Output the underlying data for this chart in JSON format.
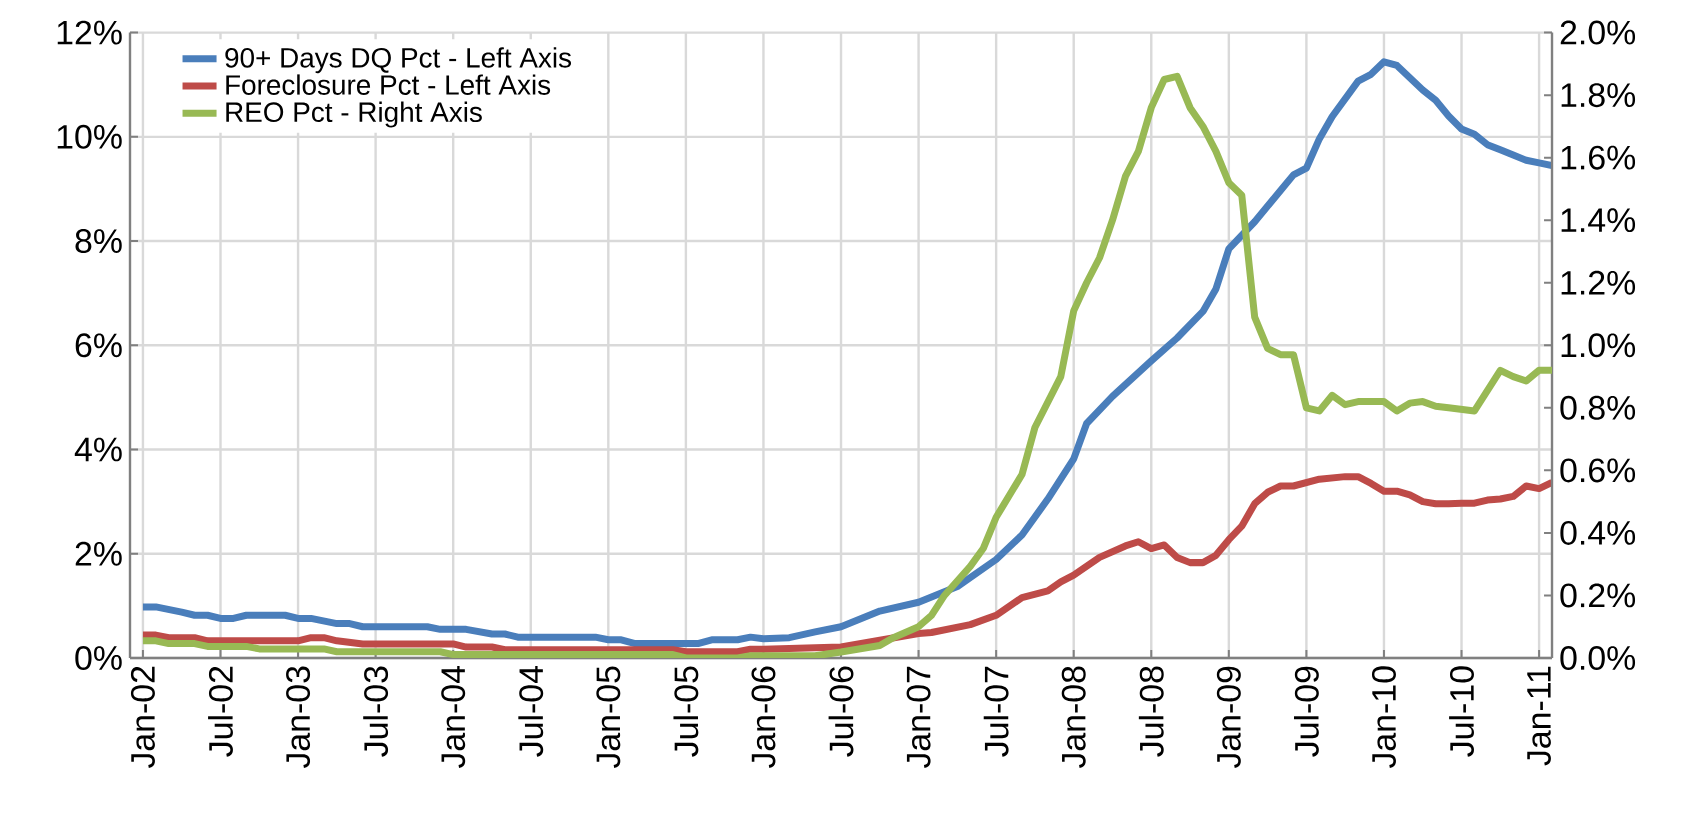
{
  "chart_data": {
    "type": "line",
    "grid": true,
    "legend": "top left",
    "line_style": "solid",
    "marker": "none",
    "xlim": [
      "2001-12",
      "2011-02"
    ],
    "xticks": [
      {
        "value": "2002-01",
        "label": "Jan-02"
      },
      {
        "value": "2002-07",
        "label": "Jul-02"
      },
      {
        "value": "2003-01",
        "label": "Jan-03"
      },
      {
        "value": "2003-07",
        "label": "Jul-03"
      },
      {
        "value": "2004-01",
        "label": "Jan-04"
      },
      {
        "value": "2004-07",
        "label": "Jul-04"
      },
      {
        "value": "2005-01",
        "label": "Jan-05"
      },
      {
        "value": "2005-07",
        "label": "Jul-05"
      },
      {
        "value": "2006-01",
        "label": "Jan-06"
      },
      {
        "value": "2006-07",
        "label": "Jul-06"
      },
      {
        "value": "2007-01",
        "label": "Jan-07"
      },
      {
        "value": "2007-07",
        "label": "Jul-07"
      },
      {
        "value": "2008-01",
        "label": "Jan-08"
      },
      {
        "value": "2008-07",
        "label": "Jul-08"
      },
      {
        "value": "2009-01",
        "label": "Jan-09"
      },
      {
        "value": "2009-07",
        "label": "Jul-09"
      },
      {
        "value": "2010-01",
        "label": "Jan-10"
      },
      {
        "value": "2010-07",
        "label": "Jul-10"
      },
      {
        "value": "2011-01",
        "label": "Jan-11"
      }
    ],
    "ylim": [
      0,
      12
    ],
    "yticks": [
      {
        "value": 0,
        "label": "0%"
      },
      {
        "value": 2,
        "label": "2%"
      },
      {
        "value": 4,
        "label": "4%"
      },
      {
        "value": 6,
        "label": "6%"
      },
      {
        "value": 8,
        "label": "8%"
      },
      {
        "value": 10,
        "label": "10%"
      },
      {
        "value": 12,
        "label": "12%"
      }
    ],
    "y2lim": [
      0,
      2
    ],
    "y2ticks": [
      {
        "value": 0,
        "label": "0.0%"
      },
      {
        "value": 0.2,
        "label": "0.2%"
      },
      {
        "value": 0.4,
        "label": "0.4%"
      },
      {
        "value": 0.6,
        "label": "0.6%"
      },
      {
        "value": 0.8,
        "label": "0.8%"
      },
      {
        "value": 1.0,
        "label": "1.0%"
      },
      {
        "value": 1.2,
        "label": "1.2%"
      },
      {
        "value": 1.4,
        "label": "1.4%"
      },
      {
        "value": 1.6,
        "label": "1.6%"
      },
      {
        "value": 1.8,
        "label": "1.8%"
      },
      {
        "value": 2.0,
        "label": "2.0%"
      }
    ],
    "series": [
      {
        "name": "90+ Days DQ Pct - Left Axis",
        "color": "#4a7ebb",
        "x": [
          "2002-01",
          "2002-02",
          "2002-04",
          "2002-05",
          "2002-06",
          "2002-07",
          "2002-08",
          "2002-09",
          "2002-12",
          "2003-01",
          "2003-02",
          "2003-04",
          "2003-05",
          "2003-06",
          "2003-11",
          "2003-12",
          "2004-02",
          "2004-04",
          "2004-05",
          "2004-06",
          "2004-12",
          "2005-01",
          "2005-02",
          "2005-03",
          "2005-08",
          "2005-09",
          "2005-11",
          "2005-12",
          "2006-01",
          "2006-03",
          "2006-05",
          "2006-07",
          "2006-10",
          "2007-01",
          "2007-04",
          "2007-07",
          "2007-09",
          "2007-11",
          "2008-01",
          "2008-02",
          "2008-04",
          "2008-07",
          "2008-09",
          "2008-11",
          "2008-12",
          "2009-01",
          "2009-03",
          "2009-05",
          "2009-06",
          "2009-07",
          "2009-08",
          "2009-09",
          "2009-10",
          "2009-11",
          "2009-12",
          "2010-01",
          "2010-02",
          "2010-04",
          "2010-05",
          "2010-06",
          "2010-07",
          "2010-08",
          "2010-09",
          "2010-10",
          "2010-11",
          "2010-12",
          "2011-01",
          "2011-02"
        ],
        "values": [
          0.98,
          0.98,
          0.88,
          0.82,
          0.82,
          0.76,
          0.76,
          0.82,
          0.82,
          0.76,
          0.76,
          0.66,
          0.66,
          0.6,
          0.6,
          0.55,
          0.55,
          0.46,
          0.46,
          0.4,
          0.4,
          0.35,
          0.35,
          0.28,
          0.28,
          0.35,
          0.35,
          0.4,
          0.37,
          0.39,
          0.5,
          0.6,
          0.9,
          1.07,
          1.37,
          1.89,
          2.36,
          3.05,
          3.82,
          4.5,
          5.02,
          5.7,
          6.14,
          6.65,
          7.08,
          7.85,
          8.37,
          8.97,
          9.27,
          9.4,
          9.96,
          10.39,
          10.73,
          11.07,
          11.2,
          11.44,
          11.37,
          10.9,
          10.7,
          10.4,
          10.15,
          10.05,
          9.85,
          9.75,
          9.65,
          9.55,
          9.5,
          9.45
        ]
      },
      {
        "name": "Foreclosure Pct - Left Axis",
        "color": "#be4b48",
        "x": [
          "2002-01",
          "2002-02",
          "2002-03",
          "2002-05",
          "2002-06",
          "2003-01",
          "2003-02",
          "2003-03",
          "2003-04",
          "2003-06",
          "2004-01",
          "2004-02",
          "2004-04",
          "2004-05",
          "2005-06",
          "2005-07",
          "2005-11",
          "2005-12",
          "2006-01",
          "2006-07",
          "2006-10",
          "2007-01",
          "2007-02",
          "2007-05",
          "2007-07",
          "2007-09",
          "2007-11",
          "2007-12",
          "2008-01",
          "2008-03",
          "2008-05",
          "2008-06",
          "2008-07",
          "2008-08",
          "2008-09",
          "2008-10",
          "2008-11",
          "2008-12",
          "2009-01",
          "2009-02",
          "2009-03",
          "2009-04",
          "2009-05",
          "2009-06",
          "2009-08",
          "2009-10",
          "2009-11",
          "2009-12",
          "2010-01",
          "2010-02",
          "2010-03",
          "2010-04",
          "2010-05",
          "2010-06",
          "2010-07",
          "2010-08",
          "2010-09",
          "2010-10",
          "2010-11",
          "2010-12",
          "2011-01",
          "2011-02"
        ],
        "values": [
          0.44,
          0.44,
          0.39,
          0.39,
          0.33,
          0.33,
          0.39,
          0.39,
          0.33,
          0.27,
          0.27,
          0.21,
          0.21,
          0.16,
          0.16,
          0.12,
          0.12,
          0.17,
          0.17,
          0.21,
          0.34,
          0.47,
          0.49,
          0.64,
          0.82,
          1.16,
          1.29,
          1.46,
          1.59,
          1.93,
          2.15,
          2.23,
          2.1,
          2.17,
          1.93,
          1.83,
          1.83,
          1.97,
          2.27,
          2.53,
          2.96,
          3.18,
          3.3,
          3.3,
          3.43,
          3.48,
          3.48,
          3.35,
          3.2,
          3.2,
          3.13,
          3.0,
          2.96,
          2.96,
          2.97,
          2.97,
          3.03,
          3.05,
          3.1,
          3.3,
          3.25,
          3.37
        ]
      },
      {
        "name": "REO Pct - Right Axis",
        "color": "#98b954",
        "axis": "y2",
        "x": [
          "2002-01",
          "2002-02",
          "2002-03",
          "2002-05",
          "2002-06",
          "2002-09",
          "2002-10",
          "2003-03",
          "2003-04",
          "2003-12",
          "2004-01",
          "2005-06",
          "2005-07",
          "2005-11",
          "2005-12",
          "2006-05",
          "2006-07",
          "2006-10",
          "2006-11",
          "2007-01",
          "2007-02",
          "2007-03",
          "2007-05",
          "2007-06",
          "2007-07",
          "2007-09",
          "2007-10",
          "2007-12",
          "2008-01",
          "2008-02",
          "2008-03",
          "2008-04",
          "2008-05",
          "2008-06",
          "2008-07",
          "2008-08",
          "2008-09",
          "2008-10",
          "2008-11",
          "2008-12",
          "2009-01",
          "2009-02",
          "2009-03",
          "2009-04",
          "2009-05",
          "2009-06",
          "2009-07",
          "2009-08",
          "2009-09",
          "2009-10",
          "2009-11",
          "2010-01",
          "2010-02",
          "2010-03",
          "2010-04",
          "2010-05",
          "2010-06",
          "2010-08",
          "2010-10",
          "2010-11",
          "2010-12",
          "2011-01",
          "2011-02"
        ],
        "values": [
          0.055,
          0.055,
          0.046,
          0.046,
          0.037,
          0.037,
          0.029,
          0.029,
          0.02,
          0.02,
          0.011,
          0.011,
          0,
          0,
          0.007,
          0.007,
          0.019,
          0.04,
          0.064,
          0.1,
          0.136,
          0.2,
          0.293,
          0.35,
          0.45,
          0.587,
          0.737,
          0.9,
          1.11,
          1.2,
          1.28,
          1.4,
          1.54,
          1.62,
          1.76,
          1.85,
          1.86,
          1.76,
          1.7,
          1.62,
          1.52,
          1.48,
          1.09,
          0.99,
          0.97,
          0.97,
          0.8,
          0.79,
          0.84,
          0.81,
          0.82,
          0.82,
          0.79,
          0.815,
          0.82,
          0.805,
          0.8,
          0.79,
          0.92,
          0.9,
          0.886,
          0.92,
          0.92
        ]
      }
    ]
  }
}
